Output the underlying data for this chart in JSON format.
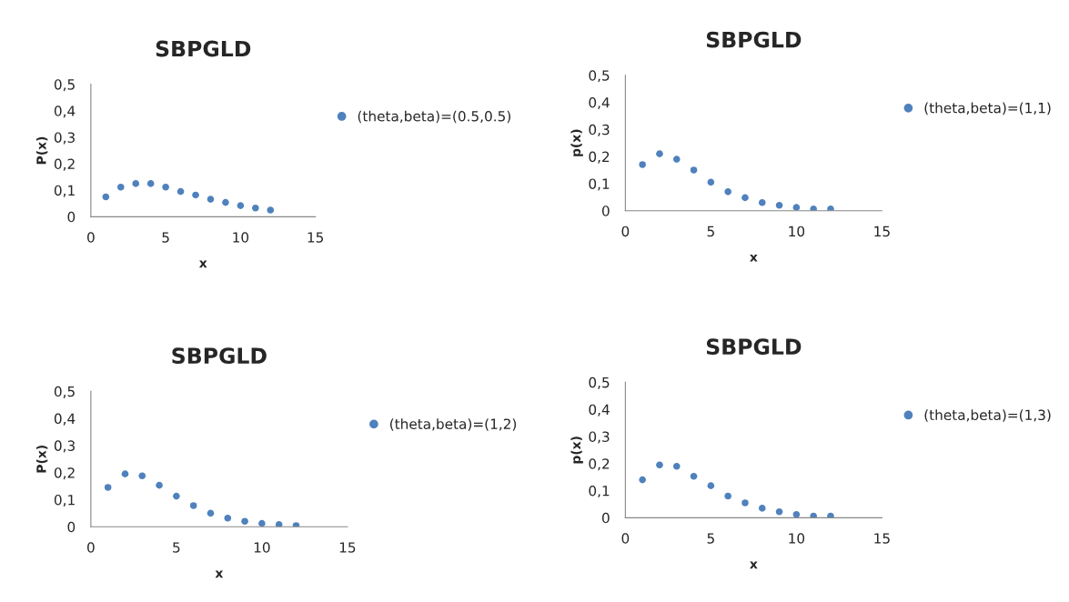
{
  "chart_data": [
    {
      "type": "scatter",
      "title": "SBPGLD",
      "xlabel": "x",
      "ylabel": "P(x)",
      "x": [
        1,
        2,
        3,
        4,
        5,
        6,
        7,
        8,
        9,
        10,
        11,
        12
      ],
      "series": [
        {
          "name": "(theta,beta)=(0.5,0.5)",
          "color": "#4f81bd",
          "values": [
            0.075,
            0.112,
            0.125,
            0.125,
            0.112,
            0.095,
            0.082,
            0.066,
            0.054,
            0.042,
            0.033,
            0.025
          ]
        }
      ],
      "xlim": [
        0,
        15
      ],
      "xticks": [
        0,
        5,
        10,
        15
      ],
      "ylim": [
        0,
        0.5
      ],
      "yticks": [
        0,
        {
          "value": 0.1,
          "label": "0,1"
        },
        {
          "value": 0.2,
          "label": "0,2"
        },
        {
          "value": 0.3,
          "label": "0,3"
        },
        {
          "value": 0.4,
          "label": "0,4"
        },
        {
          "value": 0.5,
          "label": "0,5"
        }
      ],
      "marker": "circle",
      "legend": "right",
      "grid": false
    },
    {
      "type": "scatter",
      "title": "SBPGLD",
      "xlabel": "x",
      "ylabel": "p(x)",
      "x": [
        1,
        2,
        3,
        4,
        5,
        6,
        7,
        8,
        9,
        10,
        11,
        12
      ],
      "series": [
        {
          "name": "(theta,beta)=(1,1)",
          "color": "#4f81bd",
          "values": [
            0.17,
            0.21,
            0.19,
            0.15,
            0.105,
            0.07,
            0.048,
            0.03,
            0.02,
            0.012,
            0.006,
            0.006
          ]
        }
      ],
      "xlim": [
        0,
        15
      ],
      "xticks": [
        0,
        5,
        10,
        15
      ],
      "ylim": [
        0,
        0.5
      ],
      "yticks": [
        0,
        {
          "value": 0.1,
          "label": "0,1"
        },
        {
          "value": 0.2,
          "label": "0,2"
        },
        {
          "value": 0.3,
          "label": "0,3"
        },
        {
          "value": 0.4,
          "label": "0,4"
        },
        {
          "value": 0.5,
          "label": "0,5"
        }
      ],
      "marker": "circle",
      "legend": "right",
      "grid": false
    },
    {
      "type": "scatter",
      "title": "SBPGLD",
      "xlabel": "x",
      "ylabel": "P(x)",
      "x": [
        1,
        2,
        3,
        4,
        5,
        6,
        7,
        8,
        9,
        10,
        11,
        12
      ],
      "series": [
        {
          "name": "(theta,beta)=(1,2)",
          "color": "#4f81bd",
          "values": [
            0.145,
            0.195,
            0.188,
            0.153,
            0.113,
            0.078,
            0.05,
            0.032,
            0.02,
            0.012,
            0.008,
            0.004
          ]
        }
      ],
      "xlim": [
        0,
        15
      ],
      "xticks": [
        0,
        5,
        10,
        15
      ],
      "ylim": [
        0,
        0.5
      ],
      "yticks": [
        0,
        {
          "value": 0.1,
          "label": "0,1"
        },
        {
          "value": 0.2,
          "label": "0,2"
        },
        {
          "value": 0.3,
          "label": "0,3"
        },
        {
          "value": 0.4,
          "label": "0,4"
        },
        {
          "value": 0.5,
          "label": "0,5"
        }
      ],
      "marker": "circle",
      "legend": "right",
      "grid": false
    },
    {
      "type": "scatter",
      "title": "SBPGLD",
      "xlabel": "x",
      "ylabel": "p(x)",
      "x": [
        1,
        2,
        3,
        4,
        5,
        6,
        7,
        8,
        9,
        10,
        11,
        12
      ],
      "series": [
        {
          "name": "(theta,beta)=(1,3)",
          "color": "#4f81bd",
          "values": [
            0.14,
            0.195,
            0.19,
            0.153,
            0.118,
            0.08,
            0.055,
            0.035,
            0.022,
            0.012,
            0.006,
            0.006
          ]
        }
      ],
      "xlim": [
        0,
        15
      ],
      "xticks": [
        0,
        5,
        10,
        15
      ],
      "ylim": [
        0,
        0.5
      ],
      "yticks": [
        0,
        {
          "value": 0.1,
          "label": "0,1"
        },
        {
          "value": 0.2,
          "label": "0,2"
        },
        {
          "value": 0.3,
          "label": "0,3"
        },
        {
          "value": 0.4,
          "label": "0,4"
        },
        {
          "value": 0.5,
          "label": "0,5"
        }
      ],
      "marker": "circle",
      "legend": "right",
      "grid": false
    }
  ]
}
